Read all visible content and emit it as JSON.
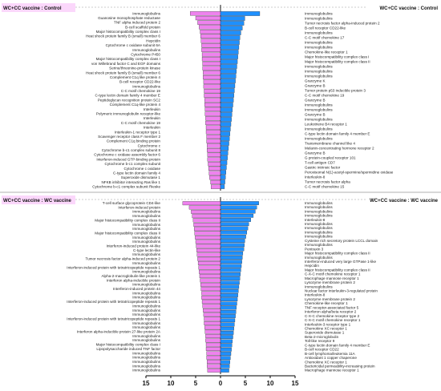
{
  "panels": [
    {
      "title_left": "WC+CC vaccine : Control",
      "title_right": "WC+CC vaccine : Control",
      "left_labels": [
        "Immunoglobulins",
        "Guanosine monophosphate reductase",
        "TNF alpha induced protein 2",
        "B-cell scaffold protein",
        "Major histocompatibility complex class I",
        "Heat shock protein family B (small) member 6",
        "Hepcidin",
        "Cytochrome c oxidase subunit 6A",
        "Immunoglobulins",
        "Cytochrome P450",
        "Major histocompatibility complex class I",
        "von Willebrand factor C and EGF domains",
        "Serine/threonine-protein kinase",
        "Heat shock protein family B (small) member 6",
        "Complement C1q like protein 4",
        "B-cell receptor CD22-like",
        "Immunoglobulins",
        "C-C motif chemokine 19",
        "C-type lectin domain family 4 member E",
        "Peptidoglycan recognition protein SC2",
        "Complement C1q-like protein 4",
        "Interleukin",
        "Polymeric immunoglobulin receptor-like",
        "Interleukin",
        "C-C motif chemokine 19",
        "Interleukin",
        "Interleukin-1 receptor type 1",
        "Scavenger receptor class F member 2",
        "Complement C1q binding protein",
        "Cytochrome c",
        "Cytochrome b-c1 complex subunit 8",
        "Cytochrome c oxidase assembly factor 6",
        "Interferon-induced GTP-binding protein",
        "Cytochrome b-c1 complex subunit",
        "Cytochrome c oxidase",
        "C-type lectin domain family 4",
        "Superoxide dismutase 1",
        "NFKB inhibitor interacting Ras like 1",
        "Cytochrome b-c1 complex subunit Rieske"
      ],
      "right_labels": [
        "Immunoglobulins",
        "Immunoglobulins",
        "Tumor necrosis factor alpha-induced protein 2",
        "B-cell receptor CD22-like",
        "Immunoglobulins",
        "C-C motif chemokine 17",
        "Immunoglobulins",
        "Immunoglobulins",
        "Chemokine-like receptor 1",
        "Major histocompatibility complex class I",
        "Major histocompatibility complex class II",
        "Immunoglobulins",
        "Immunoglobulins",
        "Immunoglobulins",
        "Granzyme K",
        "Granzyme B",
        "Tumor protein p53 inducible protein 3",
        "C-C motif chemokine 19",
        "Granzyme B",
        "Immunoglobulins",
        "Immunoglobulins",
        "Granzyme B",
        "Immunoglobulins",
        "Leukotriene B4 receptor 1",
        "Immunoglobulins",
        "C-type lectin domain family 4 member E",
        "Immunoglobulins",
        "Transmembrane channel like 4",
        "Melanin-concentrating hormone receptor 2",
        "Granzyme B",
        "G protein-coupled receptor 101",
        "T-cell antigen CD7",
        "Gastric intrinsic factor",
        "Peroxisomal N(1)-acetyl-spermine/spermidine oxidase",
        "Interleukin-8",
        "Tumor necrosis factor alpha",
        "C-C motif chemokine 15"
      ]
    },
    {
      "title_left": "WC+CC vaccine : WC vaccine",
      "title_right": "WC+CC vaccine : WC vaccine",
      "left_labels": [
        "T-cell surface glycoprotein CD4-like",
        "Interferon-induced protein",
        "Immunoglobulins",
        "Immunoglobulins",
        "Major histocompatibility complex class II",
        "Immunoglobulins",
        "Immunoglobulins",
        "Major histocompatibility complex class II",
        "Immunoglobulins",
        "Immunoglobulins",
        "Interferon-induced protein 44-like",
        "C-type lectin-like",
        "Immunoglobulins",
        "Tumor necrosis factor alpha-induced protein 2",
        "Immunoglobulins",
        "Interferon-induced protein with tetratricopeptide repeats 1",
        "Immunoglobulins",
        "Alpha-2-macroglobulin-like protein 1",
        "Interferon alpha-inducible protein",
        "Immunoglobulins",
        "Interferon-induced protein 44",
        "Immunoglobulins",
        "Immunoglobulins",
        "Interferon-induced protein with tetratricopeptide repeats 1",
        "Immunoglobulins",
        "Immunoglobulins",
        "Immunoglobulins",
        "Interferon-induced protein with tetratricopeptide repeats 1",
        "Immunoglobulins",
        "Immunoglobulins",
        "Interferon alpha-inducible protein 27-like protein 2A",
        "Immunoglobulins",
        "Immunoglobulins",
        "Major histocompatibility complex class I",
        "Lipopolysaccharide induced TNF factor",
        "Immunoglobulins",
        "Immunoglobulins",
        "Immunoglobulins",
        "Immunoglobulins",
        "Immunoglobulins"
      ],
      "right_labels": [
        "Immunoglobulins",
        "Immunoglobulins",
        "Immunoglobulins",
        "Immunoglobulins",
        "Interleukin-8",
        "Immunoglobulins",
        "Immunoglobulins",
        "Immunoglobulins",
        "Immunoglobulins",
        "Cysteine rich secretory protein LCCL domain",
        "Immunoglobulins",
        "Pentraxin 3",
        "Major histocompatibility complex class II",
        "Immunoglobulins",
        "Interferon-induced very large GTPase 1-like",
        "Hepcidin",
        "Major histocompatibility complex class II",
        "C-X-C motif chemokine receptor 1",
        "Macrophage mannose receptor 1",
        "Lysozyme membrane protein 2",
        "Immunoglobulins",
        "Nuclear factor interleukin-3-regulated protein",
        "Interleukin-8",
        "Lysozyme membrane protein 2",
        "Chemokine-like receptor 1",
        "TNF receptor-associated factor 5",
        "Interferon alpha/beta receptor 2",
        "C-X-C chemokine receptor type 2",
        "C-X-C motif chemokine receptor 1",
        "Interleukin-3 receptor type 1",
        "Chemokine XC receptor 1",
        "Superoxide dismutase 1",
        "Beta-2-microglobulin",
        "Toll-like receptor 9",
        "C-type lectin domain family 4 member E",
        "B-cell receptor CD22",
        "B-cell lymphoma/leukemia 11A",
        "Antioxidant 1 copper chaperone",
        "Chemokine XC receptor 1",
        "Bactericidal permeability-increasing protein",
        "Macrophage mannose receptor 1"
      ]
    }
  ],
  "axis": {
    "ticks": [
      "15",
      "10",
      "5",
      "0",
      "5",
      "10",
      "15"
    ]
  },
  "colors": {
    "down": "#ee82ee",
    "up": "#1e90ff",
    "title_bg": "#fbd7fb",
    "grid": "#999999"
  },
  "chart_data": [
    {
      "type": "bar",
      "title": "WC+CC vaccine : Control",
      "orientation": "horizontal-diverging",
      "xlim": [
        -15,
        15
      ],
      "xticks": [
        15,
        10,
        5,
        0,
        5,
        10,
        15
      ],
      "series": [
        {
          "side": "left",
          "values": [
            6.1,
            5.0,
            4.6,
            4.3,
            4.1,
            4.0,
            3.9,
            3.8,
            3.8,
            3.7,
            3.7,
            3.6,
            3.6,
            3.5,
            3.5,
            3.4,
            3.4,
            3.3,
            3.3,
            3.2,
            3.2,
            3.1,
            3.1,
            3.0,
            3.0,
            2.9,
            2.9,
            2.8,
            2.8,
            2.7,
            2.7,
            2.6,
            2.6,
            2.5,
            2.4,
            2.3,
            2.2,
            2.0,
            1.9
          ]
        },
        {
          "side": "right",
          "values": [
            7.9,
            4.9,
            4.7,
            4.4,
            4.1,
            3.9,
            3.8,
            3.7,
            3.6,
            3.5,
            3.4,
            3.3,
            3.2,
            3.1,
            3.0,
            2.9,
            2.8,
            2.7,
            2.6,
            2.5,
            2.4,
            2.3,
            2.2,
            2.1,
            2.0,
            1.9,
            1.8,
            1.7,
            1.6,
            1.5,
            1.4,
            1.3,
            1.2,
            1.1,
            1.0,
            0.9,
            0.8
          ]
        }
      ]
    },
    {
      "type": "bar",
      "title": "WC+CC vaccine : WC vaccine",
      "orientation": "horizontal-diverging",
      "xlim": [
        -15,
        15
      ],
      "xticks": [
        15,
        10,
        5,
        0,
        5,
        10,
        15
      ],
      "series": [
        {
          "side": "left",
          "values": [
            7.6,
            6.3,
            5.9,
            5.7,
            5.5,
            5.4,
            5.3,
            5.2,
            5.1,
            5.0,
            4.9,
            4.8,
            4.7,
            4.6,
            4.5,
            4.4,
            4.3,
            4.2,
            4.1,
            4.0,
            3.9,
            3.8,
            3.8,
            3.7,
            3.6,
            3.5,
            3.4,
            3.3,
            3.3,
            3.2,
            3.1,
            3.0,
            3.0,
            2.9,
            2.9,
            2.8,
            2.8,
            2.7,
            2.7,
            2.6
          ]
        },
        {
          "side": "right",
          "values": [
            7.7,
            7.3,
            7.0,
            6.6,
            6.1,
            5.7,
            5.5,
            5.3,
            5.1,
            4.9,
            4.8,
            4.7,
            4.5,
            4.4,
            4.3,
            4.2,
            4.1,
            4.0,
            3.9,
            3.8,
            3.7,
            3.6,
            3.5,
            3.4,
            3.3,
            3.2,
            3.1,
            3.0,
            2.9,
            2.8,
            2.7,
            2.6,
            2.5,
            2.4,
            2.3,
            2.2,
            2.1,
            2.0,
            1.9,
            1.8,
            1.7
          ]
        }
      ]
    }
  ]
}
